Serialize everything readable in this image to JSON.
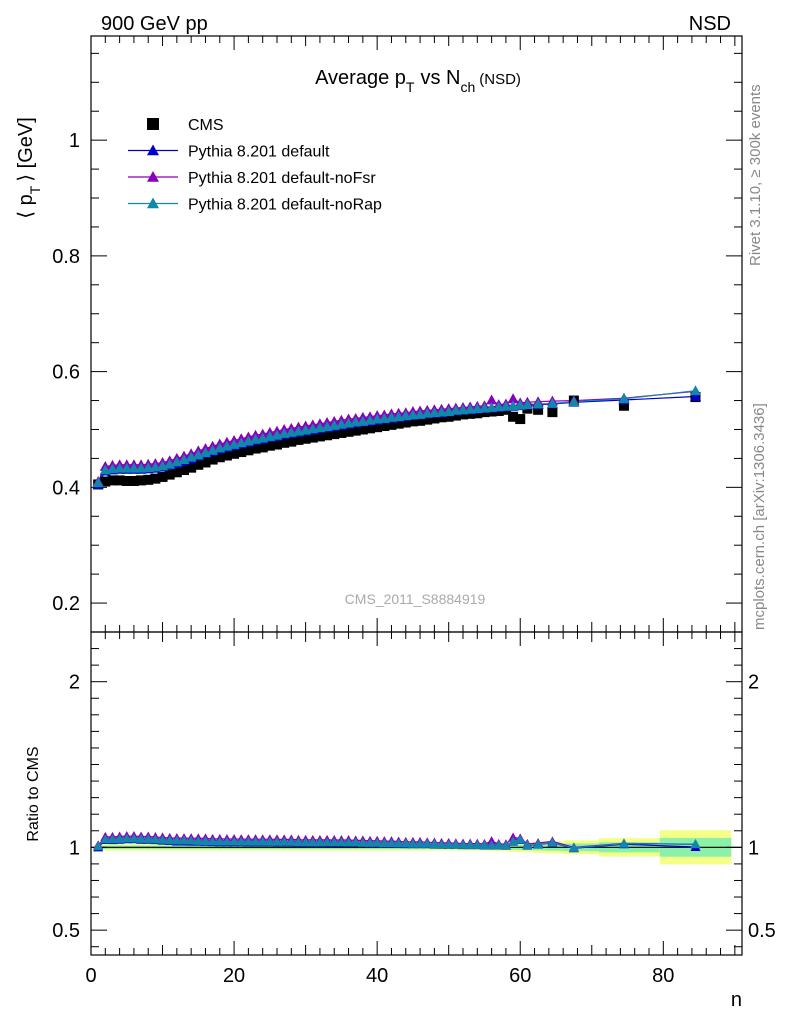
{
  "header": {
    "left": "900 GeV pp",
    "right": "NSD"
  },
  "side_text": {
    "rivet": "Rivet 3.1.10, ≥ 300k events",
    "mcplots": "mcplots.cern.ch [arXiv:1306.3436]"
  },
  "watermark": "CMS_2011_S8884919",
  "chart_data": {
    "type": "scatter",
    "title": "Average p_T vs N_ch (NSD)",
    "xlabel": "n",
    "ylabel": "⟨ p_T ⟩ [GeV]",
    "ratio_ylabel": "Ratio to CMS",
    "xlim": [
      0,
      91
    ],
    "ylim": [
      0.15,
      1.18
    ],
    "ratio_ylim": [
      0.35,
      2.3
    ],
    "x_ticks": [
      0,
      20,
      40,
      60,
      80
    ],
    "y_ticks": [
      0.2,
      0.4,
      0.6,
      0.8,
      1
    ],
    "ratio_y_ticks": [
      0.5,
      1,
      2
    ],
    "legend": {
      "placement": "top-left",
      "entries": [
        {
          "label": "CMS",
          "color": "#000000",
          "marker": "square"
        },
        {
          "label": "Pythia 8.201 default",
          "color": "#0000cc",
          "marker": "triangle"
        },
        {
          "label": "Pythia 8.201 default-noFsr",
          "color": "#8800bb",
          "marker": "triangle"
        },
        {
          "label": "Pythia 8.201 default-noRap",
          "color": "#1188aa",
          "marker": "triangle"
        }
      ]
    },
    "x": [
      1,
      2,
      3,
      4,
      5,
      6,
      7,
      8,
      9,
      10,
      11,
      12,
      13,
      14,
      15,
      16,
      17,
      18,
      19,
      20,
      21,
      22,
      23,
      24,
      25,
      26,
      27,
      28,
      29,
      30,
      31,
      32,
      33,
      34,
      35,
      36,
      37,
      38,
      39,
      40,
      41,
      42,
      43,
      44,
      45,
      46,
      47,
      48,
      49,
      50,
      51,
      52,
      53,
      54,
      55,
      56,
      57,
      58,
      59,
      60,
      61,
      62.5,
      64.5,
      67.5,
      74.5,
      84.5
    ],
    "series": [
      {
        "name": "CMS",
        "color": "#000000",
        "values": [
          0.405,
          0.41,
          0.412,
          0.412,
          0.411,
          0.411,
          0.412,
          0.413,
          0.415,
          0.418,
          0.422,
          0.426,
          0.43,
          0.434,
          0.439,
          0.443,
          0.448,
          0.452,
          0.455,
          0.458,
          0.461,
          0.464,
          0.467,
          0.469,
          0.472,
          0.474,
          0.477,
          0.479,
          0.482,
          0.484,
          0.486,
          0.488,
          0.49,
          0.492,
          0.494,
          0.496,
          0.498,
          0.5,
          0.502,
          0.504,
          0.506,
          0.508,
          0.51,
          0.512,
          0.514,
          0.515,
          0.517,
          0.519,
          0.521,
          0.522,
          0.524,
          0.526,
          0.527,
          0.528,
          0.53,
          0.531,
          0.532,
          0.534,
          0.522,
          0.518,
          0.536,
          0.534,
          0.53,
          0.55,
          0.541,
          0.556
        ]
      },
      {
        "name": "Pythia 8.201 default",
        "color": "#0000cc",
        "values": [
          0.405,
          0.428,
          0.43,
          0.431,
          0.431,
          0.431,
          0.431,
          0.432,
          0.433,
          0.435,
          0.438,
          0.441,
          0.445,
          0.449,
          0.454,
          0.458,
          0.462,
          0.466,
          0.469,
          0.472,
          0.475,
          0.478,
          0.481,
          0.483,
          0.486,
          0.488,
          0.491,
          0.493,
          0.495,
          0.497,
          0.499,
          0.501,
          0.503,
          0.505,
          0.507,
          0.509,
          0.511,
          0.513,
          0.514,
          0.516,
          0.518,
          0.519,
          0.521,
          0.522,
          0.524,
          0.525,
          0.527,
          0.528,
          0.529,
          0.53,
          0.532,
          0.533,
          0.534,
          0.535,
          0.536,
          0.537,
          0.538,
          0.539,
          0.54,
          0.541,
          0.542,
          0.543,
          0.544,
          0.547,
          0.551,
          0.557
        ]
      },
      {
        "name": "Pythia 8.201 default-noFsr",
        "color": "#8800bb",
        "values": [
          0.41,
          0.436,
          0.438,
          0.439,
          0.439,
          0.439,
          0.439,
          0.44,
          0.441,
          0.443,
          0.446,
          0.45,
          0.454,
          0.458,
          0.463,
          0.467,
          0.471,
          0.475,
          0.478,
          0.481,
          0.484,
          0.487,
          0.49,
          0.492,
          0.495,
          0.497,
          0.5,
          0.502,
          0.504,
          0.506,
          0.508,
          0.51,
          0.512,
          0.514,
          0.516,
          0.518,
          0.519,
          0.521,
          0.522,
          0.524,
          0.525,
          0.527,
          0.528,
          0.529,
          0.531,
          0.532,
          0.533,
          0.534,
          0.535,
          0.536,
          0.537,
          0.538,
          0.539,
          0.54,
          0.541,
          0.551,
          0.543,
          0.544,
          0.553,
          0.546,
          0.547,
          0.548,
          0.549,
          0.55,
          0.554,
          0.566
        ]
      },
      {
        "name": "Pythia 8.201 default-noRap",
        "color": "#1188aa",
        "values": [
          0.408,
          0.43,
          0.432,
          0.433,
          0.433,
          0.433,
          0.433,
          0.434,
          0.435,
          0.437,
          0.44,
          0.444,
          0.448,
          0.452,
          0.456,
          0.46,
          0.464,
          0.468,
          0.471,
          0.474,
          0.477,
          0.48,
          0.483,
          0.485,
          0.488,
          0.49,
          0.493,
          0.495,
          0.497,
          0.499,
          0.501,
          0.503,
          0.505,
          0.507,
          0.509,
          0.511,
          0.513,
          0.514,
          0.516,
          0.518,
          0.519,
          0.521,
          0.522,
          0.524,
          0.525,
          0.526,
          0.528,
          0.529,
          0.53,
          0.531,
          0.533,
          0.534,
          0.535,
          0.536,
          0.537,
          0.538,
          0.539,
          0.54,
          0.541,
          0.542,
          0.543,
          0.544,
          0.545,
          0.548,
          0.553,
          0.567
        ]
      }
    ]
  }
}
